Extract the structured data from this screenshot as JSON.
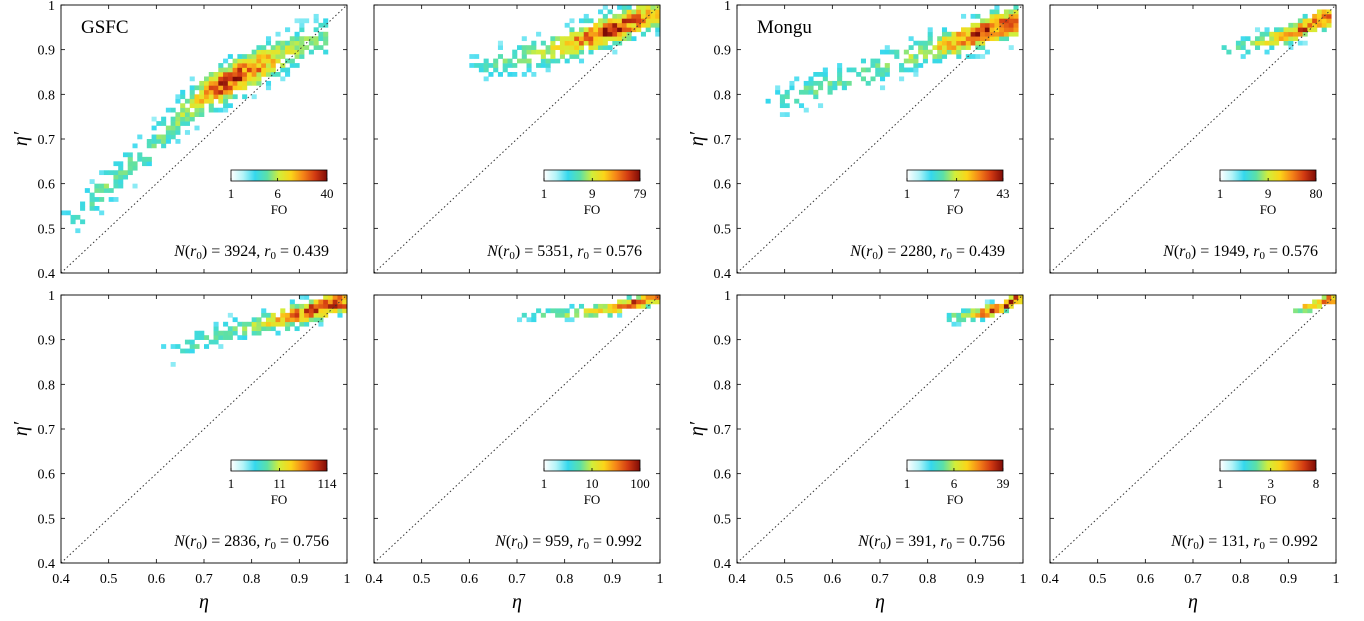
{
  "colormap": [
    "#ffffff",
    "#b4f4f8",
    "#35d8ee",
    "#5be0a8",
    "#d2ee3a",
    "#fbd519",
    "#f58518",
    "#d23a12",
    "#7e0b06"
  ],
  "axes_common": {
    "xlim": [
      0.4,
      1
    ],
    "ylim": [
      0.4,
      1
    ],
    "xticks": [
      "0.4",
      "0.5",
      "0.6",
      "0.7",
      "0.8",
      "0.9",
      "1"
    ],
    "yticks": [
      "0.4",
      "0.5",
      "0.6",
      "0.7",
      "0.8",
      "0.9",
      "1"
    ],
    "xlabel": "η",
    "ylabel": "η′",
    "colorbar_label": "FO",
    "diagonal": "dotted 1:1 line"
  },
  "chart_data": [
    {
      "type": "heatmap",
      "site": "GSFC",
      "N": 3924,
      "r0": 0.439,
      "annotation": {
        "N": "3924",
        "r": "0.439"
      },
      "colorbar_ticks": [
        "1",
        "6",
        "40"
      ],
      "fo_max": 40,
      "fo_mid": 6,
      "centroid": [
        [
          0.42,
          0.51
        ],
        [
          0.5,
          0.6
        ],
        [
          0.58,
          0.67
        ],
        [
          0.66,
          0.76
        ],
        [
          0.74,
          0.82
        ],
        [
          0.82,
          0.87
        ],
        [
          0.9,
          0.91
        ],
        [
          0.95,
          0.93
        ]
      ],
      "spread": 0.03,
      "peak": [
        0.76,
        0.835
      ]
    },
    {
      "type": "heatmap",
      "N": 5351,
      "r0": 0.576,
      "annotation": {
        "N": "5351",
        "r": "0.576"
      },
      "colorbar_ticks": [
        "1",
        "9",
        "79"
      ],
      "fo_max": 79,
      "fo_mid": 9,
      "centroid": [
        [
          0.62,
          0.86
        ],
        [
          0.7,
          0.88
        ],
        [
          0.78,
          0.9
        ],
        [
          0.86,
          0.93
        ],
        [
          0.93,
          0.96
        ],
        [
          0.98,
          0.98
        ]
      ],
      "spread": 0.025,
      "peak": [
        0.9,
        0.94
      ]
    },
    {
      "type": "heatmap",
      "site": "Mongu",
      "N": 2280,
      "r0": 0.439,
      "annotation": {
        "N": "2280",
        "r": "0.439"
      },
      "colorbar_ticks": [
        "1",
        "7",
        "43"
      ],
      "fo_max": 43,
      "fo_mid": 7,
      "centroid": [
        [
          0.48,
          0.78
        ],
        [
          0.58,
          0.82
        ],
        [
          0.68,
          0.85
        ],
        [
          0.78,
          0.89
        ],
        [
          0.87,
          0.92
        ],
        [
          0.94,
          0.95
        ],
        [
          0.97,
          0.96
        ]
      ],
      "spread": 0.025,
      "peak": [
        0.93,
        0.94
      ]
    },
    {
      "type": "heatmap",
      "N": 1949,
      "r0": 0.576,
      "annotation": {
        "N": "1949",
        "r": "0.576"
      },
      "colorbar_ticks": [
        "1",
        "9",
        "80"
      ],
      "fo_max": 80,
      "fo_mid": 9,
      "centroid": [
        [
          0.78,
          0.9
        ],
        [
          0.86,
          0.92
        ],
        [
          0.92,
          0.94
        ],
        [
          0.97,
          0.97
        ]
      ],
      "spread": 0.015,
      "peak": [
        0.96,
        0.97
      ]
    },
    {
      "type": "heatmap",
      "N": 2836,
      "r0": 0.756,
      "annotation": {
        "N": "2836",
        "r": "0.756"
      },
      "colorbar_ticks": [
        "1",
        "11",
        "114"
      ],
      "fo_max": 114,
      "fo_mid": 11,
      "centroid": [
        [
          0.63,
          0.87
        ],
        [
          0.72,
          0.91
        ],
        [
          0.8,
          0.93
        ],
        [
          0.88,
          0.95
        ],
        [
          0.94,
          0.97
        ],
        [
          0.98,
          0.985
        ]
      ],
      "spread": 0.018,
      "peak": [
        0.95,
        0.97
      ]
    },
    {
      "type": "heatmap",
      "N": 959,
      "r0": 0.992,
      "annotation": {
        "N": "959",
        "r": "0.992"
      },
      "colorbar_ticks": [
        "1",
        "10",
        "100"
      ],
      "fo_max": 100,
      "fo_mid": 10,
      "centroid": [
        [
          0.72,
          0.955
        ],
        [
          0.82,
          0.96
        ],
        [
          0.9,
          0.97
        ],
        [
          0.96,
          0.985
        ],
        [
          0.985,
          0.995
        ]
      ],
      "spread": 0.01,
      "peak": [
        0.98,
        0.99
      ]
    },
    {
      "type": "heatmap",
      "N": 391,
      "r0": 0.756,
      "annotation": {
        "N": "391",
        "r": "0.756"
      },
      "colorbar_ticks": [
        "1",
        "6",
        "39"
      ],
      "fo_max": 39,
      "fo_mid": 6,
      "centroid": [
        [
          0.86,
          0.95
        ],
        [
          0.92,
          0.96
        ],
        [
          0.96,
          0.975
        ],
        [
          0.98,
          0.99
        ]
      ],
      "spread": 0.01,
      "peak": [
        0.97,
        0.985
      ]
    },
    {
      "type": "heatmap",
      "N": 131,
      "r0": 0.992,
      "annotation": {
        "N": "131",
        "r": "0.992"
      },
      "colorbar_ticks": [
        "1",
        "3",
        "8"
      ],
      "fo_max": 8,
      "fo_mid": 3,
      "centroid": [
        [
          0.93,
          0.97
        ],
        [
          0.96,
          0.98
        ],
        [
          0.98,
          0.99
        ]
      ],
      "spread": 0.008,
      "peak": [
        0.97,
        0.985
      ]
    }
  ]
}
